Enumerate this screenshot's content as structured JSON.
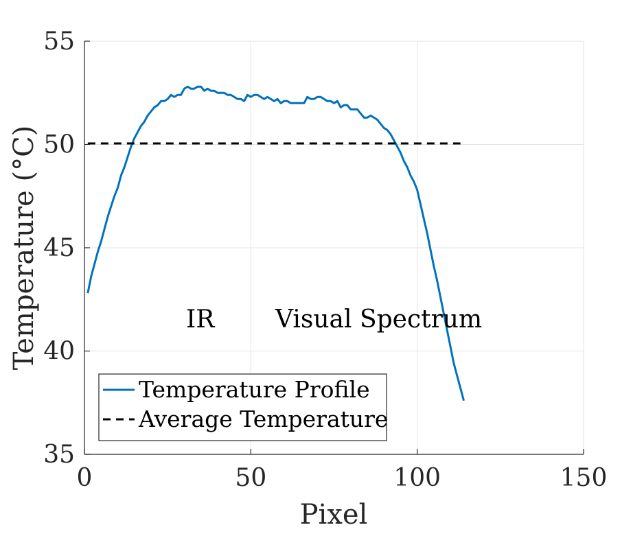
{
  "chart_data": {
    "type": "line",
    "title": "",
    "xlabel": "Pixel",
    "ylabel": "Temperature (°C)",
    "xlim": [
      0,
      150
    ],
    "ylim": [
      35,
      55
    ],
    "xticks": [
      0,
      50,
      100,
      150
    ],
    "yticks": [
      35,
      40,
      45,
      50,
      55
    ],
    "grid": true,
    "legend_position": "bottom-left",
    "annotations": [
      "IR",
      "Visual Spectrum"
    ],
    "series": [
      {
        "name": "Temperature Profile",
        "color": "#0072BD",
        "style": "solid",
        "x": [
          1,
          2,
          3,
          4,
          5,
          6,
          7,
          8,
          9,
          10,
          11,
          12,
          13,
          14,
          15,
          16,
          17,
          18,
          19,
          20,
          21,
          22,
          23,
          24,
          25,
          26,
          27,
          28,
          29,
          30,
          31,
          32,
          33,
          34,
          35,
          36,
          37,
          38,
          39,
          40,
          41,
          42,
          43,
          44,
          45,
          46,
          47,
          48,
          49,
          50,
          51,
          52,
          53,
          54,
          55,
          56,
          57,
          58,
          59,
          60,
          61,
          62,
          63,
          64,
          65,
          66,
          67,
          68,
          69,
          70,
          71,
          72,
          73,
          74,
          75,
          76,
          77,
          78,
          79,
          80,
          81,
          82,
          83,
          84,
          85,
          86,
          87,
          88,
          89,
          90,
          91,
          92,
          93,
          94,
          95,
          96,
          97,
          98,
          99,
          100,
          101,
          102,
          103,
          104,
          105,
          106,
          107,
          108,
          109,
          110,
          111,
          112,
          113,
          114
        ],
        "y": [
          42.8,
          43.6,
          44.2,
          44.8,
          45.3,
          45.9,
          46.5,
          47.0,
          47.5,
          47.9,
          48.5,
          48.9,
          49.4,
          49.9,
          50.3,
          50.6,
          50.9,
          51.1,
          51.4,
          51.6,
          51.8,
          51.9,
          52.1,
          52.1,
          52.2,
          52.4,
          52.3,
          52.4,
          52.4,
          52.7,
          52.8,
          52.7,
          52.7,
          52.8,
          52.8,
          52.6,
          52.7,
          52.6,
          52.6,
          52.5,
          52.5,
          52.5,
          52.4,
          52.4,
          52.3,
          52.2,
          52.2,
          52.1,
          52.4,
          52.3,
          52.4,
          52.4,
          52.3,
          52.2,
          52.3,
          52.2,
          52.1,
          52.2,
          52.0,
          52.1,
          52.1,
          52.0,
          52.0,
          52.0,
          52.0,
          52.0,
          52.3,
          52.2,
          52.2,
          52.3,
          52.3,
          52.2,
          52.1,
          52.1,
          52.0,
          52.1,
          51.8,
          51.9,
          51.9,
          51.7,
          51.7,
          51.7,
          51.5,
          51.3,
          51.3,
          51.4,
          51.3,
          51.2,
          51.0,
          50.8,
          50.7,
          50.5,
          50.2,
          49.9,
          49.6,
          49.2,
          48.9,
          48.5,
          48.2,
          47.8,
          47.1,
          46.4,
          45.7,
          44.9,
          44.1,
          43.4,
          42.6,
          41.8,
          41.0,
          40.2,
          39.4,
          38.8,
          38.2,
          37.6
        ]
      },
      {
        "name": "Average Temperature",
        "color": "#000000",
        "style": "dashed",
        "x": [
          1,
          113
        ],
        "y": [
          50.05,
          50.05
        ]
      }
    ]
  }
}
